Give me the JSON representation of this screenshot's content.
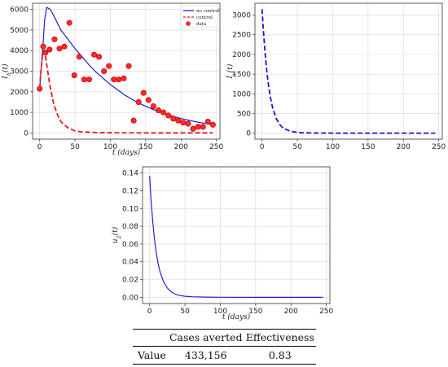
{
  "chart_data": [
    {
      "type": "line",
      "panel": "top-left",
      "xlabel": "t (days)",
      "ylabel": "I_h(t)",
      "xlim": [
        -10,
        255
      ],
      "ylim": [
        -300,
        6300
      ],
      "xticks": [
        0,
        50,
        100,
        150,
        200,
        250
      ],
      "yticks": [
        0,
        1000,
        2000,
        3000,
        4000,
        5000,
        6000
      ],
      "grid": true,
      "legend": {
        "position": "top-right",
        "entries": [
          "no control",
          "control",
          "data"
        ]
      },
      "series": [
        {
          "name": "no control",
          "style": "solid",
          "color": "#1f1fd6",
          "x": [
            0,
            3,
            5,
            7,
            10,
            15,
            20,
            30,
            40,
            50,
            60,
            70,
            80,
            100,
            120,
            140,
            160,
            180,
            200,
            220,
            245
          ],
          "y": [
            2150,
            3500,
            4400,
            5500,
            6100,
            6000,
            5700,
            5000,
            4550,
            4100,
            3700,
            3300,
            2950,
            2350,
            1850,
            1450,
            1150,
            900,
            700,
            550,
            400
          ]
        },
        {
          "name": "control",
          "style": "dashed",
          "color": "#e31a1c",
          "x": [
            0,
            2,
            4,
            6,
            8,
            10,
            15,
            20,
            25,
            30,
            40,
            50,
            60,
            80,
            100,
            150,
            200,
            245
          ],
          "y": [
            2150,
            3100,
            3800,
            4000,
            3800,
            3300,
            2200,
            1400,
            900,
            550,
            250,
            100,
            50,
            20,
            10,
            5,
            5,
            5
          ]
        },
        {
          "name": "data",
          "style": "markers",
          "color": "#ff2a2a",
          "x": [
            0,
            5,
            8,
            14,
            21,
            28,
            35,
            42,
            49,
            56,
            63,
            70,
            77,
            84,
            91,
            98,
            105,
            112,
            119,
            126,
            133,
            140,
            147,
            154,
            161,
            168,
            175,
            182,
            189,
            196,
            203,
            210,
            217,
            224,
            231,
            238,
            245
          ],
          "y": [
            2150,
            4200,
            3900,
            4050,
            4550,
            4100,
            4200,
            5350,
            2800,
            3700,
            2600,
            2600,
            3800,
            3700,
            3000,
            3250,
            2600,
            2600,
            2650,
            3250,
            600,
            1500,
            1950,
            1600,
            1300,
            1100,
            1000,
            850,
            700,
            600,
            500,
            450,
            200,
            300,
            300,
            550,
            400
          ]
        }
      ]
    },
    {
      "type": "line",
      "panel": "top-right",
      "xlabel": "",
      "ylabel": "I_v(t)",
      "xlim": [
        -10,
        255
      ],
      "ylim": [
        -150,
        3300
      ],
      "xticks": [
        0,
        50,
        100,
        150,
        200,
        250
      ],
      "yticks": [
        0,
        500,
        1000,
        1500,
        2000,
        2500,
        3000
      ],
      "grid": true,
      "series": [
        {
          "style": "dashed",
          "color": "#1515d0",
          "x": [
            0,
            2,
            4,
            6,
            8,
            10,
            12,
            15,
            20,
            25,
            30,
            40,
            50,
            60,
            80,
            100,
            150,
            200,
            245
          ],
          "y": [
            3150,
            2600,
            2100,
            1700,
            1380,
            1120,
            900,
            650,
            380,
            220,
            130,
            50,
            20,
            10,
            5,
            3,
            2,
            2,
            2
          ]
        }
      ]
    },
    {
      "type": "line",
      "panel": "bottom",
      "xlabel": "t (days)",
      "ylabel": "u_2(t)",
      "xlim": [
        -10,
        255
      ],
      "ylim": [
        -0.007,
        0.147
      ],
      "xticks": [
        0,
        50,
        100,
        150,
        200,
        250
      ],
      "yticks": [
        0.0,
        0.02,
        0.04,
        0.06,
        0.08,
        0.1,
        0.12,
        0.14
      ],
      "grid": true,
      "series": [
        {
          "style": "solid",
          "color": "#2020d8",
          "x": [
            0,
            2,
            4,
            6,
            8,
            10,
            12,
            15,
            20,
            25,
            30,
            35,
            40,
            50,
            60,
            80,
            100,
            150,
            200,
            245
          ],
          "y": [
            0.137,
            0.11,
            0.089,
            0.072,
            0.058,
            0.047,
            0.038,
            0.028,
            0.017,
            0.0105,
            0.0065,
            0.004,
            0.0025,
            0.0012,
            0.0006,
            0.0002,
            0.0001,
            0.0,
            0.0,
            0.0
          ]
        }
      ]
    }
  ],
  "table": {
    "headers": [
      "",
      "Cases averted",
      "Effectiveness"
    ],
    "rows": [
      {
        "label": "Value",
        "cases_averted": "433,156",
        "effectiveness": "0.83"
      }
    ]
  }
}
